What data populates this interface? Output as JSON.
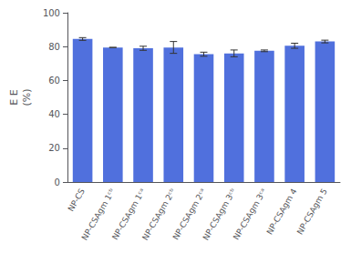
{
  "chart_data": {
    "type": "bar",
    "categories": [
      "NP-CS",
      "NP-CSAgm 1ᶜᵇ",
      "NP-CSAgm 1ᶜᵃ",
      "NP-CSAgm 2ᶜᵇ",
      "NP-CSAgm 2ᶜᵃ",
      "NP-CSAgm 3ᶜᵇ",
      "NP-CSAgm 3ᶜᵃ",
      "NP-CSAgm 4",
      "NP-CSAgm 5"
    ],
    "values": [
      84.5,
      79.5,
      79.0,
      79.5,
      75.5,
      76.0,
      77.5,
      80.5,
      83.0
    ],
    "errors": [
      0.8,
      0.0,
      1.2,
      3.5,
      1.2,
      2.0,
      0.5,
      1.5,
      0.8
    ],
    "ylabel": "E E\n(%)",
    "ylim": [
      0,
      100
    ],
    "yticks": [
      0,
      20,
      40,
      60,
      80,
      100
    ],
    "grid": false
  }
}
